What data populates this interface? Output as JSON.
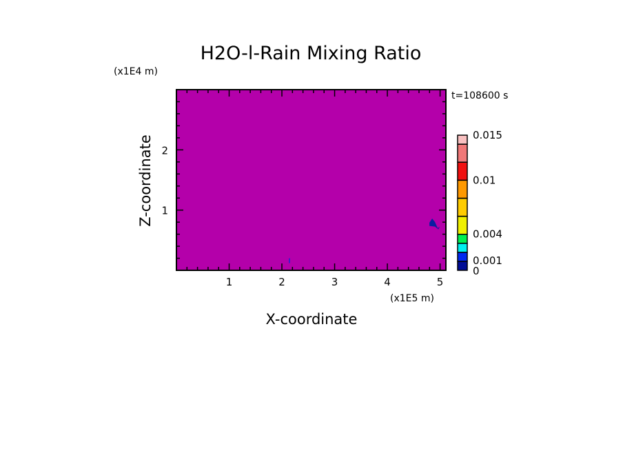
{
  "chart_data": {
    "type": "heatmap",
    "title": "H2O-l-Rain Mixing Ratio",
    "xlabel": "X-coordinate",
    "ylabel": "Z-coordinate",
    "x_unit": "(x1E5 m)",
    "y_unit": "(x1E4 m)",
    "time_label": "t=108600 s",
    "xlim": [
      0,
      5.11
    ],
    "ylim": [
      0,
      3.0
    ],
    "x_ticks": [
      "1",
      "2",
      "3",
      "4",
      "5"
    ],
    "y_ticks": [
      "1",
      "2"
    ],
    "background_value_range": [
      0,
      0.001
    ],
    "background_color": "#b400aa",
    "features": [
      {
        "x": 4.85,
        "z_range": [
          0.68,
          0.86
        ],
        "value_range": [
          0.001,
          0.002
        ],
        "color": "#0a1ea0"
      },
      {
        "x": 2.13,
        "z_range": [
          0.12,
          0.2
        ],
        "value_range": [
          0.001,
          0.002
        ],
        "color": "#3a1ec8"
      }
    ],
    "colorbar": {
      "levels": [
        0,
        0.001,
        0.002,
        0.003,
        0.004,
        0.006,
        0.008,
        0.01,
        0.012,
        0.014,
        0.015
      ],
      "colors": [
        "#000c96",
        "#0028f0",
        "#00f0f0",
        "#00f050",
        "#f0f000",
        "#ffcc00",
        "#ff9900",
        "#f01010",
        "#f07878",
        "#f8c0c0"
      ],
      "labels": [
        "0",
        "0.001",
        "0.004",
        "0.01",
        "0.015"
      ]
    }
  }
}
